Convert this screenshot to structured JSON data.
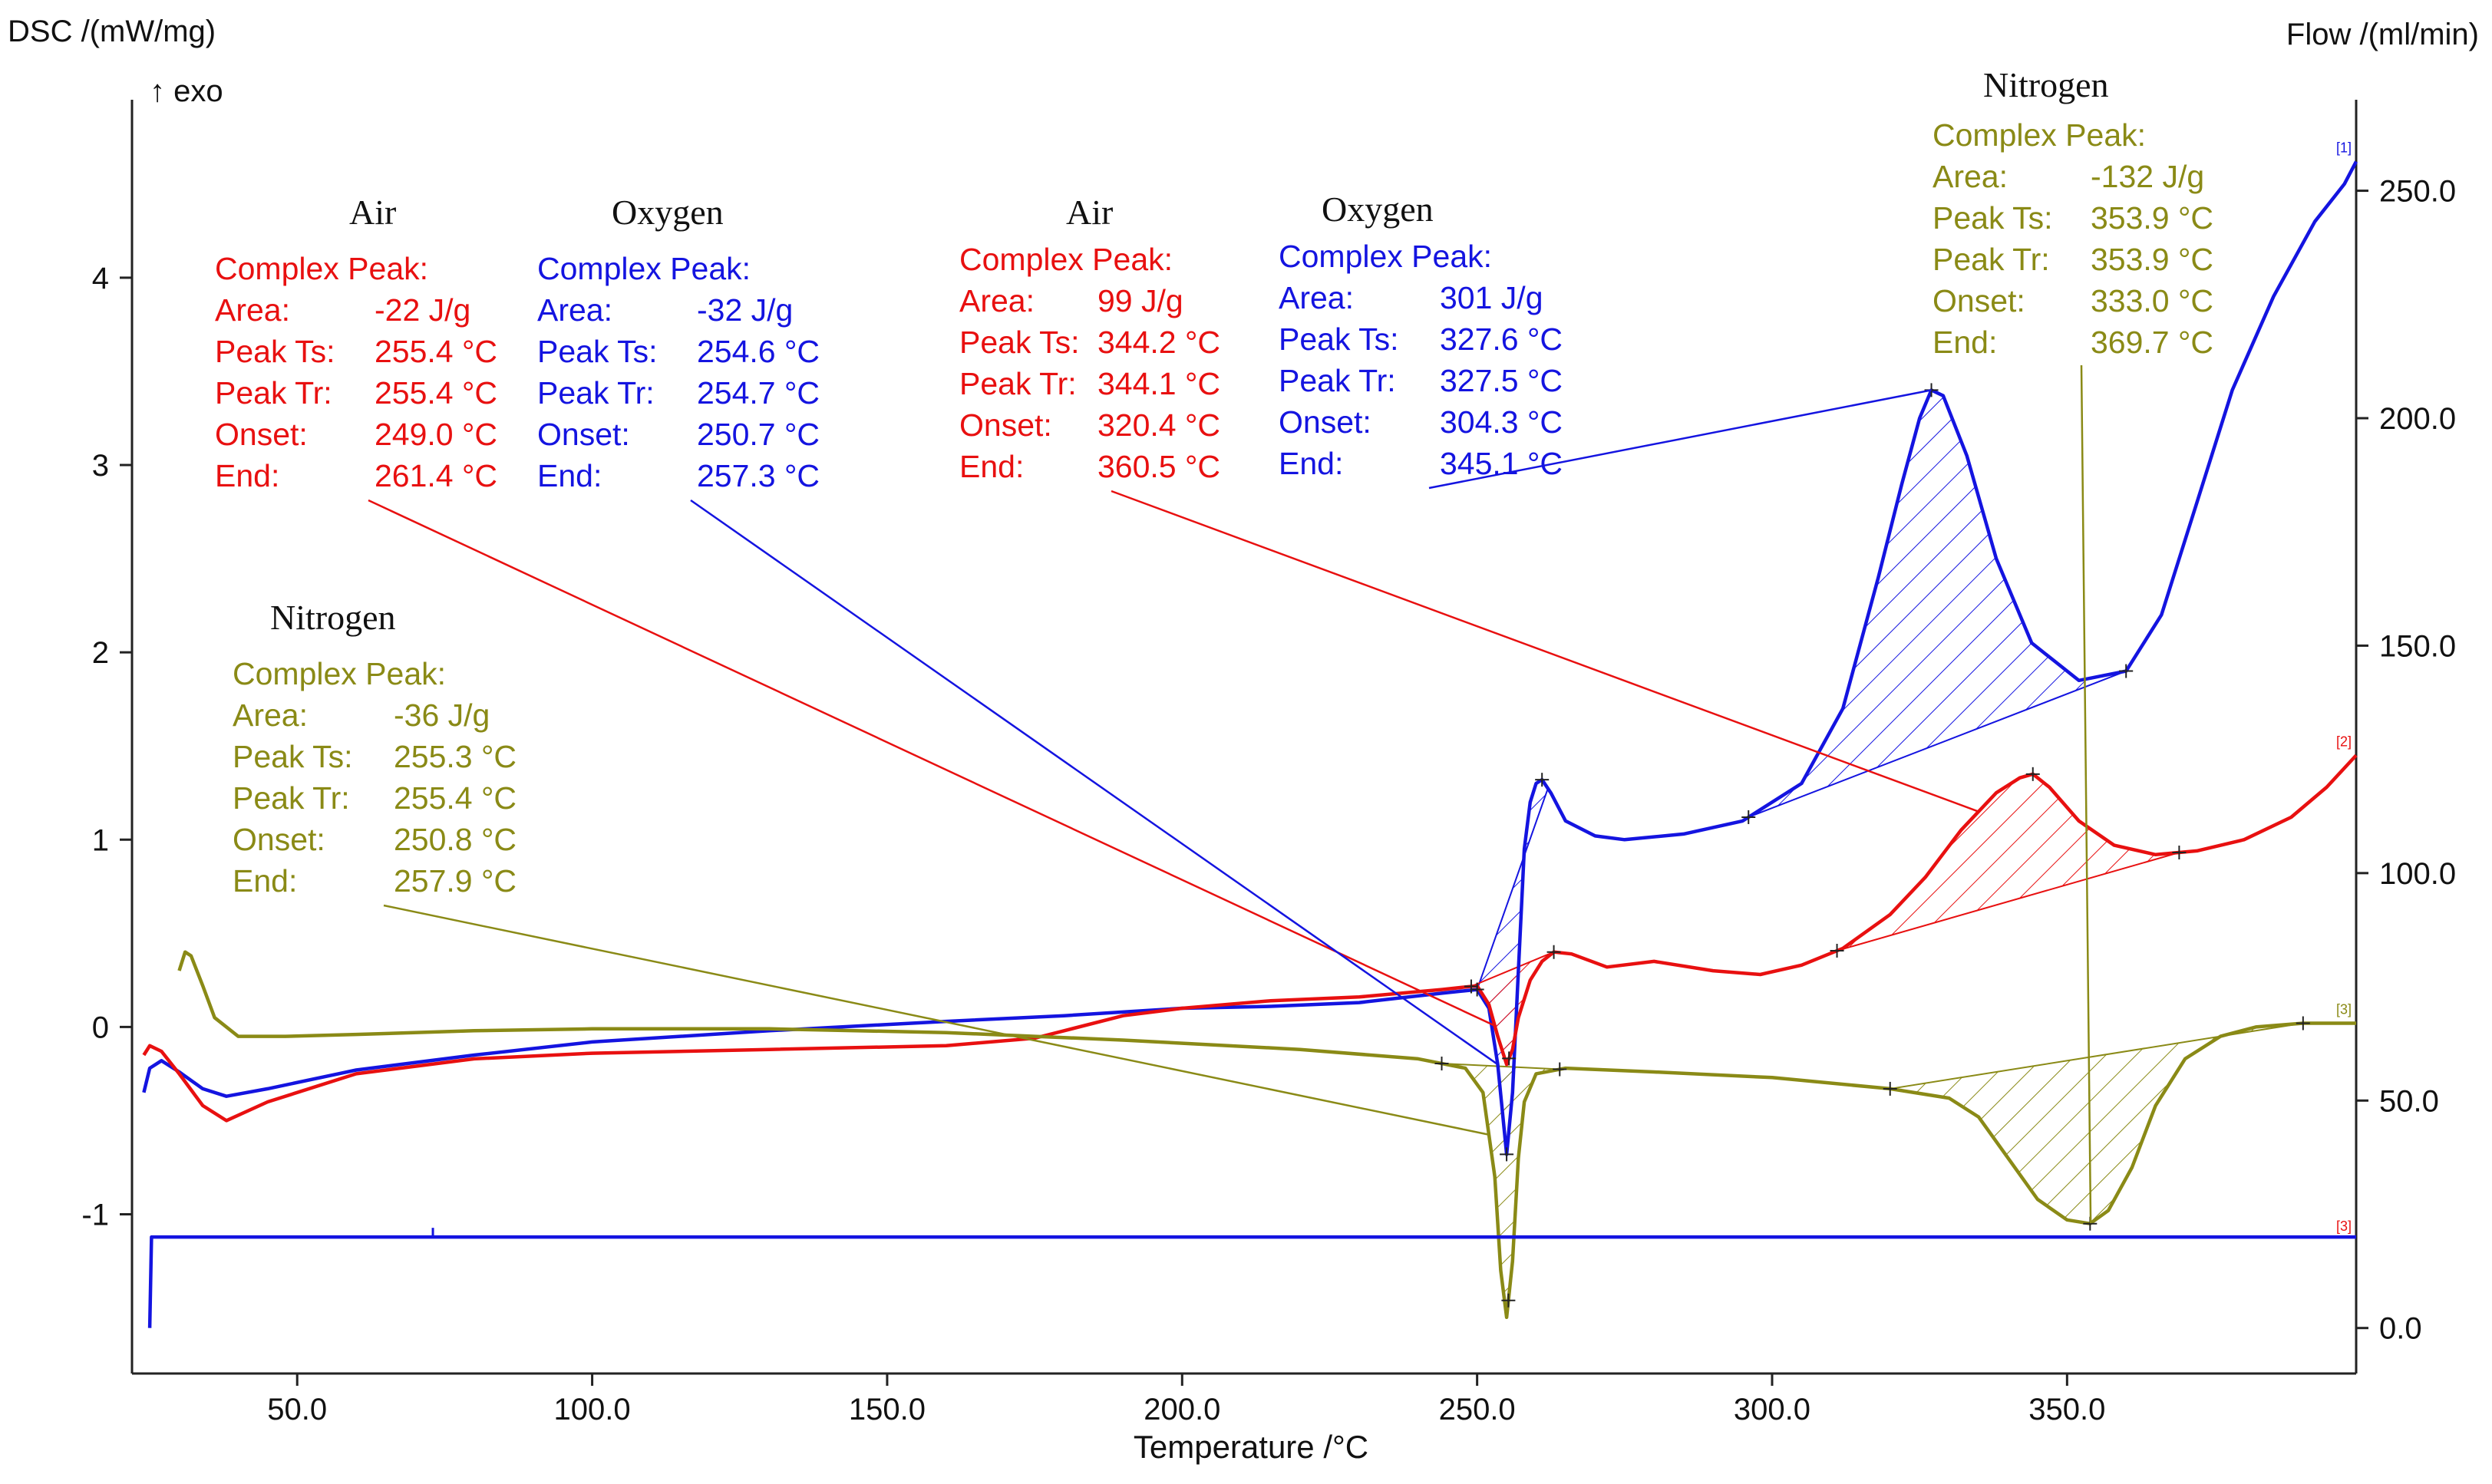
{
  "chart_data": {
    "type": "line",
    "title": "",
    "xlabel": "Temperature /°C",
    "ylabel_left": "DSC /(mW/mg)",
    "ylabel_right": "Flow /(ml/min)",
    "exo_label": "↑ exo",
    "xlim": [
      22,
      399
    ],
    "ylim_left": [
      -1.85,
      4.95
    ],
    "ylim_right": [
      -10,
      270
    ],
    "x_ticks": [
      50,
      100,
      150,
      200,
      250,
      300,
      350
    ],
    "x_tick_labels": [
      "50.0",
      "100.0",
      "150.0",
      "200.0",
      "250.0",
      "300.0",
      "350.0"
    ],
    "y_left_ticks": [
      -1,
      0,
      1,
      2,
      3,
      4
    ],
    "y_left_tick_labels": [
      "-1",
      "0",
      "1",
      "2",
      "3",
      "4"
    ],
    "y_right_ticks": [
      0,
      50,
      100,
      150,
      200,
      250
    ],
    "y_right_tick_labels": [
      "0.0",
      "50.0",
      "100.0",
      "150.0",
      "200.0",
      "250.0"
    ],
    "series": [
      {
        "name": "Oxygen DSC",
        "marker": "[1]",
        "color": "#1414e0",
        "x": [
          24,
          25,
          27,
          30,
          34,
          38,
          45,
          60,
          80,
          100,
          130,
          160,
          180,
          200,
          215,
          230,
          244,
          250,
          252,
          253.5,
          255,
          256,
          257,
          258,
          259,
          260,
          261,
          262.5,
          265,
          270,
          275,
          285,
          295,
          305,
          312,
          318,
          322,
          325,
          327,
          329,
          333,
          338,
          344,
          352,
          360,
          366,
          372,
          378,
          385,
          392,
          397,
          399
        ],
        "values": [
          -0.35,
          -0.22,
          -0.18,
          -0.24,
          -0.33,
          -0.37,
          -0.33,
          -0.23,
          -0.15,
          -0.08,
          -0.02,
          0.03,
          0.06,
          0.1,
          0.11,
          0.13,
          0.18,
          0.2,
          0.1,
          -0.2,
          -0.68,
          -0.35,
          0.3,
          0.95,
          1.2,
          1.3,
          1.32,
          1.25,
          1.1,
          1.02,
          1.0,
          1.03,
          1.1,
          1.3,
          1.7,
          2.4,
          2.9,
          3.25,
          3.4,
          3.37,
          3.05,
          2.5,
          2.05,
          1.85,
          1.9,
          2.2,
          2.8,
          3.4,
          3.9,
          4.3,
          4.5,
          4.62
        ],
        "peaks": [
          {
            "label": "Oxygen",
            "heading": "Complex Peak:",
            "area": "-32 J/g",
            "peak_ts": "254.6 °C",
            "peak_tr": "254.7 °C",
            "onset": "250.7 °C",
            "end": "257.3 °C"
          },
          {
            "label": "Oxygen",
            "heading": "Complex Peak:",
            "area": "301 J/g",
            "peak_ts": "327.6 °C",
            "peak_tr": "327.5 °C",
            "onset": "304.3 °C",
            "end": "345.1 °C"
          }
        ]
      },
      {
        "name": "Air DSC",
        "marker": "[2]",
        "color": "#e81010",
        "x": [
          24,
          25,
          27,
          30,
          34,
          38,
          45,
          60,
          80,
          100,
          130,
          160,
          175,
          180,
          190,
          200,
          215,
          230,
          244,
          250,
          252,
          253.5,
          255,
          256,
          257,
          259,
          261,
          263,
          266,
          272,
          280,
          290,
          298,
          305,
          312,
          320,
          326,
          332,
          338,
          342,
          344.2,
          347,
          352,
          358,
          365,
          372,
          380,
          388,
          394,
          399
        ],
        "values": [
          -0.15,
          -0.1,
          -0.13,
          -0.25,
          -0.42,
          -0.5,
          -0.4,
          -0.25,
          -0.17,
          -0.14,
          -0.12,
          -0.1,
          -0.06,
          -0.02,
          0.06,
          0.1,
          0.14,
          0.16,
          0.2,
          0.22,
          0.12,
          -0.05,
          -0.2,
          -0.12,
          0.05,
          0.25,
          0.35,
          0.4,
          0.39,
          0.32,
          0.35,
          0.3,
          0.28,
          0.33,
          0.42,
          0.6,
          0.8,
          1.05,
          1.25,
          1.33,
          1.35,
          1.28,
          1.1,
          0.97,
          0.92,
          0.94,
          1.0,
          1.12,
          1.28,
          1.45
        ],
        "peaks": [
          {
            "label": "Air",
            "heading": "Complex Peak:",
            "area": "-22 J/g",
            "peak_ts": "255.4 °C",
            "peak_tr": "255.4 °C",
            "onset": "249.0 °C",
            "end": "261.4 °C"
          },
          {
            "label": "Air",
            "heading": "Complex Peak:",
            "area": "99 J/g",
            "peak_ts": "344.2 °C",
            "peak_tr": "344.1 °C",
            "onset": "320.4 °C",
            "end": "360.5 °C"
          }
        ]
      },
      {
        "name": "Nitrogen DSC",
        "marker": "[3]",
        "color": "#8a8a16",
        "x": [
          30,
          31,
          32,
          34,
          36,
          40,
          48,
          60,
          80,
          100,
          130,
          160,
          190,
          220,
          240,
          248,
          251,
          253,
          254,
          255,
          256,
          257,
          258,
          260,
          265,
          280,
          300,
          320,
          330,
          335,
          340,
          345,
          350,
          353.9,
          357,
          361,
          365,
          370,
          376,
          382,
          390,
          397,
          399
        ],
        "values": [
          0.3,
          0.4,
          0.38,
          0.22,
          0.05,
          -0.05,
          -0.05,
          -0.04,
          -0.02,
          -0.01,
          -0.01,
          -0.03,
          -0.07,
          -0.12,
          -0.17,
          -0.22,
          -0.35,
          -0.8,
          -1.3,
          -1.55,
          -1.25,
          -0.7,
          -0.4,
          -0.25,
          -0.22,
          -0.24,
          -0.27,
          -0.33,
          -0.38,
          -0.48,
          -0.7,
          -0.92,
          -1.03,
          -1.05,
          -0.98,
          -0.75,
          -0.42,
          -0.17,
          -0.05,
          0.0,
          0.02,
          0.02,
          0.02
        ],
        "peaks": [
          {
            "label": "Nitrogen",
            "heading": "Complex Peak:",
            "area": "-36 J/g",
            "peak_ts": "255.3 °C",
            "peak_tr": "255.4 °C",
            "onset": "250.8 °C",
            "end": "257.9 °C"
          },
          {
            "label": "Nitrogen",
            "heading": "Complex Peak:",
            "area": "-132 J/g",
            "peak_ts": "353.9 °C",
            "peak_tr": "353.9 °C",
            "onset": "333.0 °C",
            "end": "369.7 °C"
          }
        ]
      },
      {
        "name": "Flow",
        "marker": "[3]",
        "color": "#1414e0",
        "axis": "right",
        "x": [
          25,
          25.3,
          399
        ],
        "values": [
          0,
          20,
          20
        ]
      }
    ],
    "row_labels": {
      "area": "Area:",
      "peak_ts": "Peak Ts:",
      "peak_tr": "Peak Tr:",
      "onset": "Onset:",
      "end": "End:"
    }
  }
}
